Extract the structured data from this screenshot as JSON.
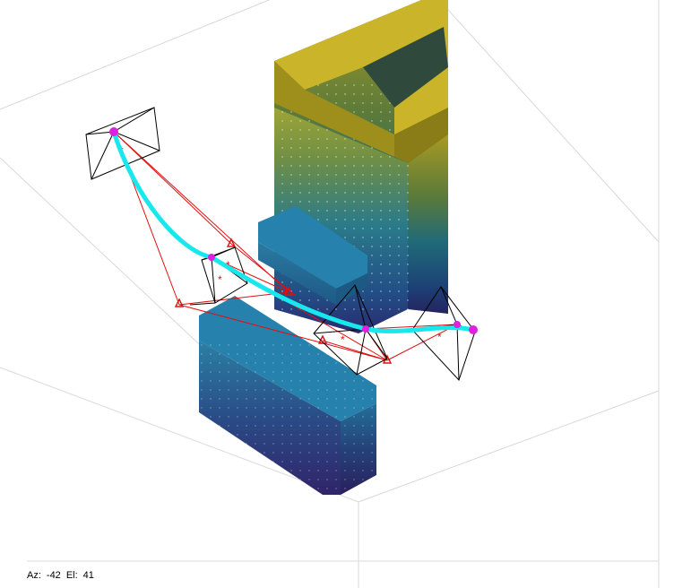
{
  "view": {
    "az_label": "Az:",
    "az_value": "-42",
    "el_label": "El:",
    "el_value": "41"
  },
  "colors": {
    "trajectory": "#18e8ee",
    "camera_marker": "#e020e0",
    "frustum": "#000000",
    "rays": "#e01010",
    "grid": "#d8d8d8",
    "block_top": "#2a86b0",
    "tower_top": "#c8b428",
    "base_dark": "#2a2a6a"
  }
}
